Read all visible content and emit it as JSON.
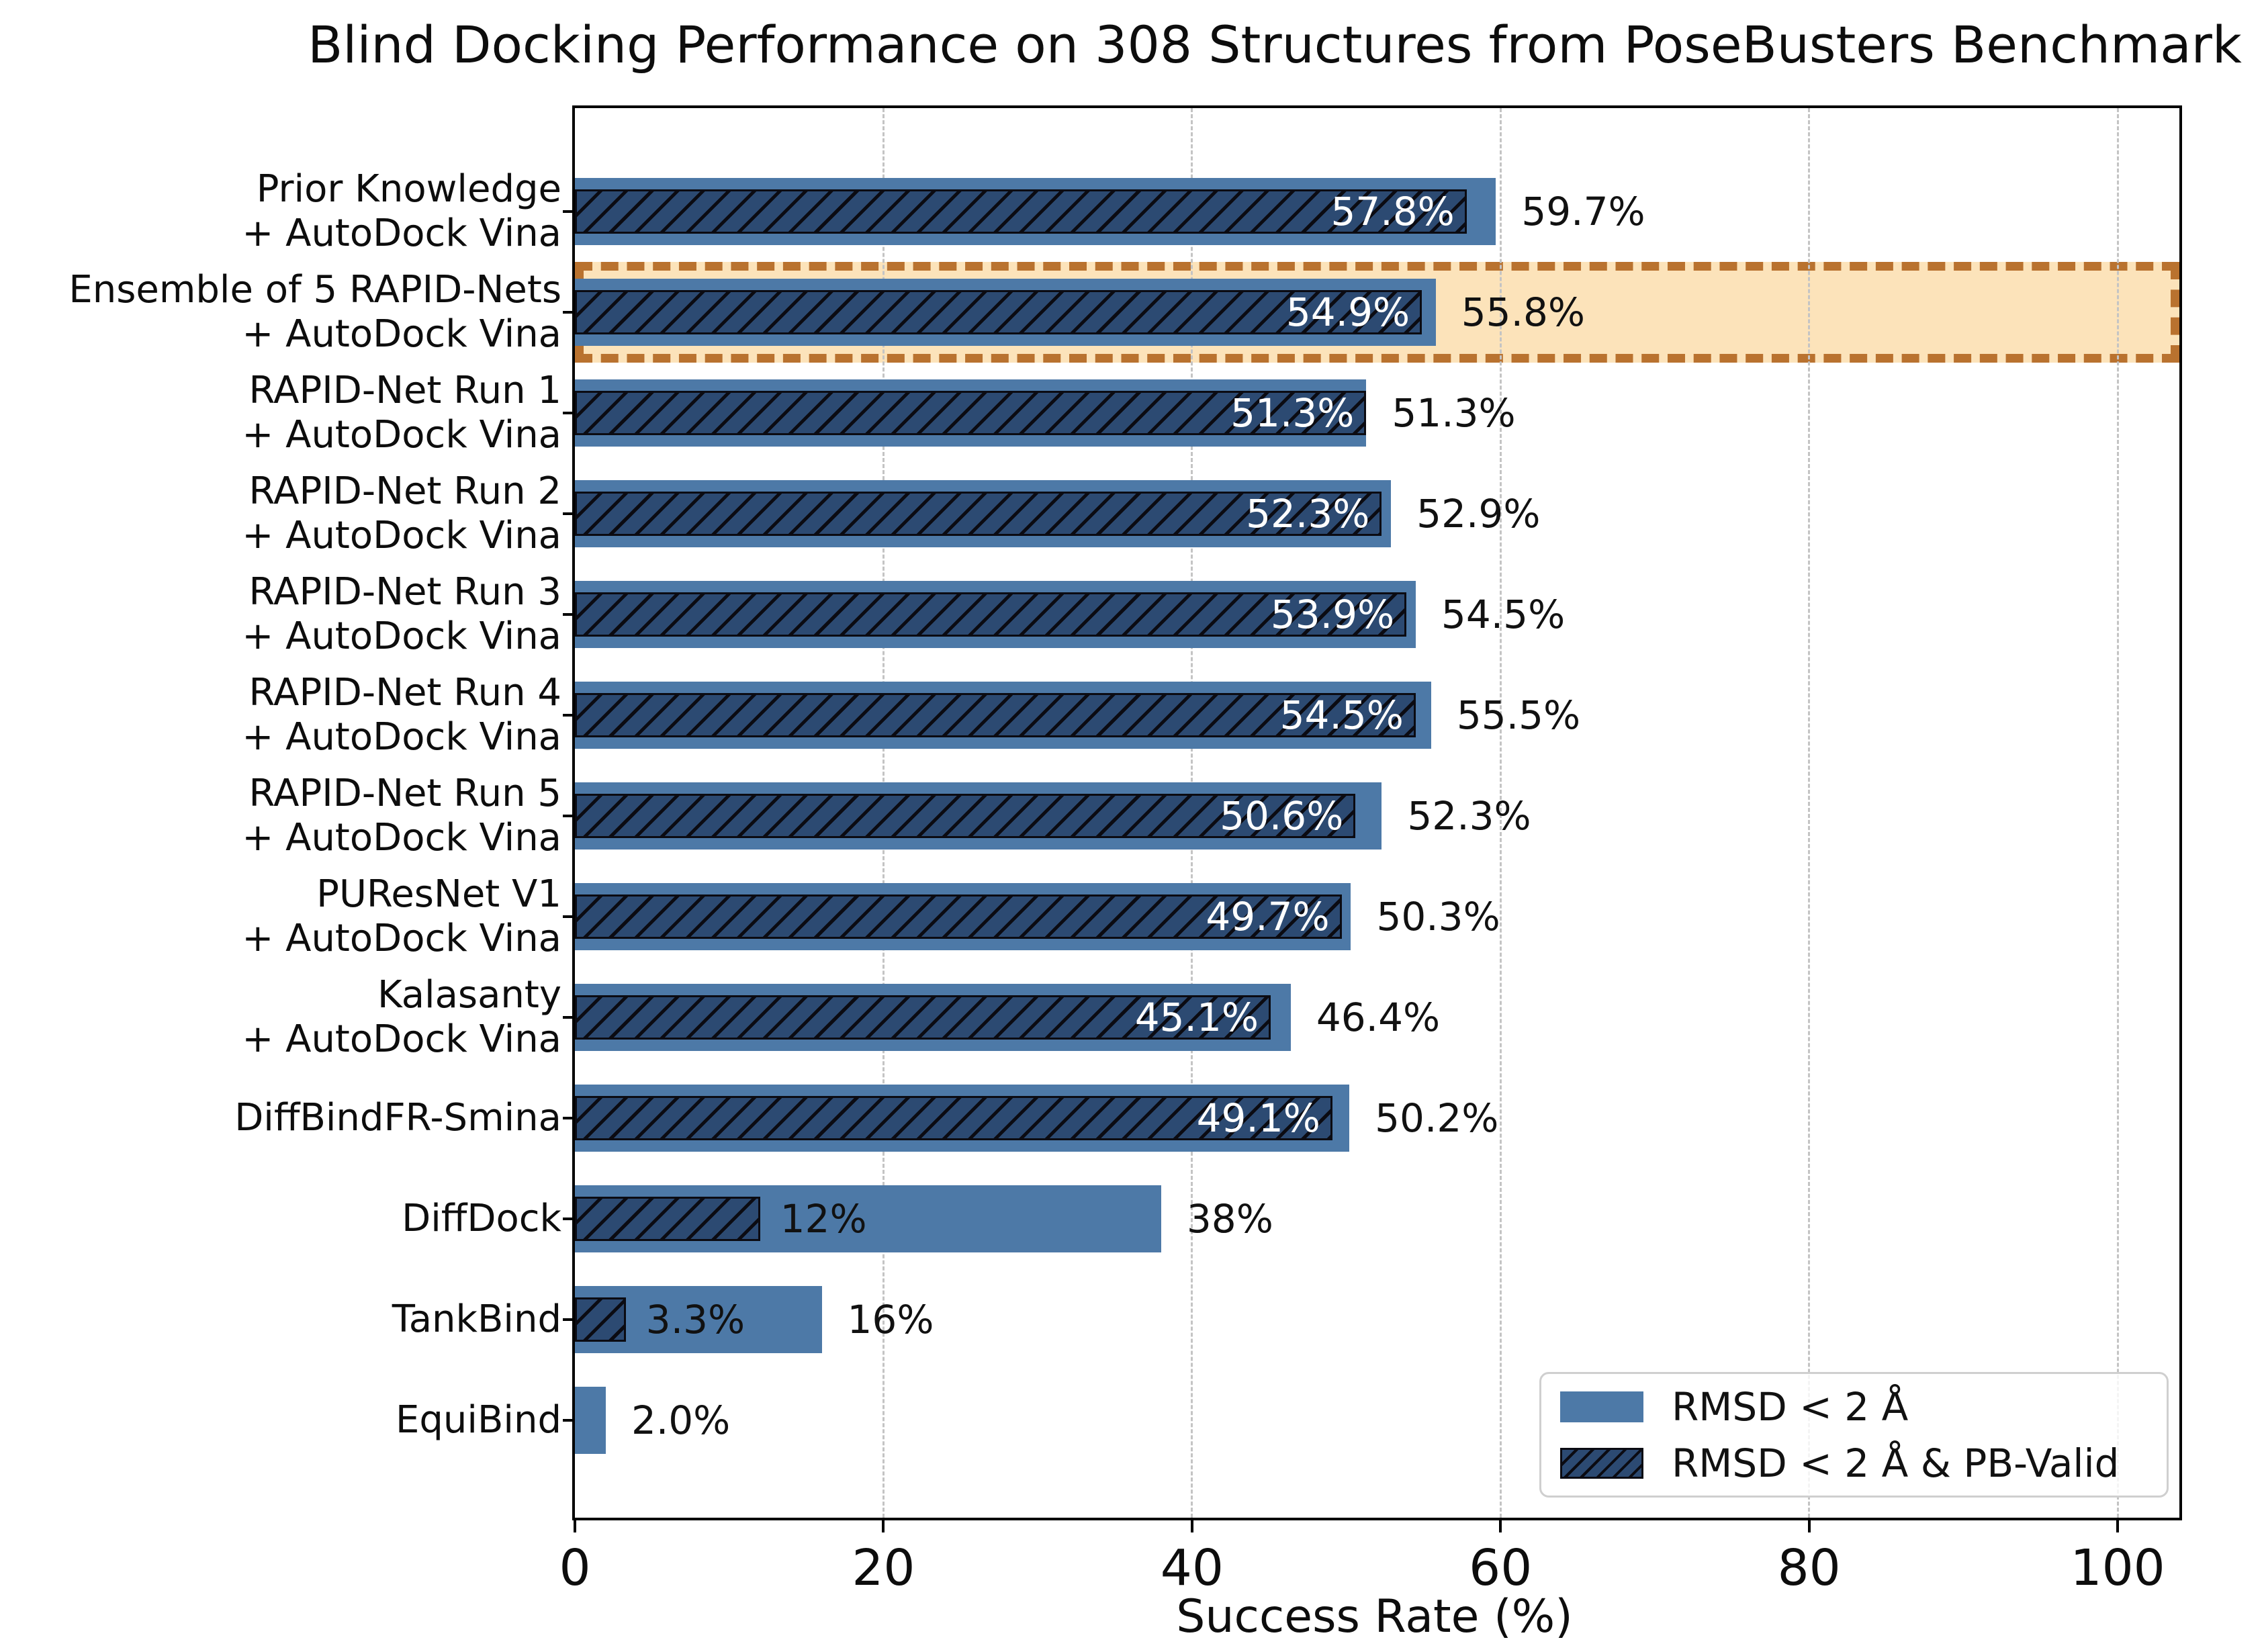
{
  "chart_data": {
    "type": "bar",
    "orientation": "horizontal",
    "title": "Blind Docking Performance on 308 Structures from PoseBusters Benchmark",
    "xlabel": "Success Rate (%)",
    "xlim": [
      0,
      104
    ],
    "x_ticks": [
      0,
      20,
      40,
      60,
      80,
      100
    ],
    "x_tick_labels": [
      "0",
      "20",
      "40",
      "60",
      "80",
      "100"
    ],
    "grid": {
      "axis": "x",
      "style": "dashed"
    },
    "legend_location": "lower right",
    "categories": [
      {
        "lines": [
          "Prior Knowledge",
          "+ AutoDock Vina"
        ]
      },
      {
        "lines": [
          "Ensemble of 5 RAPID-Nets",
          "+ AutoDock Vina"
        ]
      },
      {
        "lines": [
          "RAPID-Net Run 1",
          "+ AutoDock Vina"
        ]
      },
      {
        "lines": [
          "RAPID-Net Run 2",
          "+ AutoDock Vina"
        ]
      },
      {
        "lines": [
          "RAPID-Net Run 3",
          "+ AutoDock Vina"
        ]
      },
      {
        "lines": [
          "RAPID-Net Run 4",
          "+ AutoDock Vina"
        ]
      },
      {
        "lines": [
          "RAPID-Net Run 5",
          "+ AutoDock Vina"
        ]
      },
      {
        "lines": [
          "PUResNet V1",
          "+ AutoDock Vina"
        ]
      },
      {
        "lines": [
          "Kalasanty",
          "+ AutoDock Vina"
        ]
      },
      {
        "lines": [
          "DiffBindFR-Smina"
        ]
      },
      {
        "lines": [
          "DiffDock"
        ]
      },
      {
        "lines": [
          "TankBind"
        ]
      },
      {
        "lines": [
          "EquiBind"
        ]
      }
    ],
    "series": [
      {
        "name": "RMSD < 2 Å",
        "color": "#4D79A7",
        "values": [
          59.7,
          55.8,
          51.3,
          52.9,
          54.5,
          55.5,
          52.3,
          50.3,
          46.4,
          50.2,
          38,
          16,
          2.0
        ],
        "labels": [
          "59.7%",
          "55.8%",
          "51.3%",
          "52.9%",
          "54.5%",
          "55.5%",
          "52.3%",
          "50.3%",
          "46.4%",
          "50.2%",
          "38%",
          "16%",
          "2.0%"
        ]
      },
      {
        "name": "RMSD < 2 Å & PB-Valid",
        "color": "#2C4A72",
        "hatch": "//",
        "values": [
          57.8,
          54.9,
          51.3,
          52.3,
          53.9,
          54.5,
          50.6,
          49.7,
          45.1,
          49.1,
          12,
          3.3,
          null
        ],
        "labels": [
          "57.8%",
          "54.9%",
          "51.3%",
          "52.3%",
          "53.9%",
          "54.5%",
          "50.6%",
          "49.7%",
          "45.1%",
          "49.1%",
          "12%",
          "3.3%",
          null
        ]
      }
    ],
    "highlight": {
      "row_index": 1,
      "fill": "#FCE3BA",
      "border": "#B9722F"
    }
  },
  "colors": {
    "background": "#FFFFFF",
    "axis": "#000000",
    "grid": "#C4C4C4",
    "bar_light": "#4D79A7",
    "bar_dark": "#2C4A72",
    "hatch_line": "#0B0B12",
    "value_label_inside": "#FFFFFF",
    "value_label_outside": "#111111",
    "highlight_fill": "#FCE3BA",
    "highlight_border": "#B9722F"
  }
}
